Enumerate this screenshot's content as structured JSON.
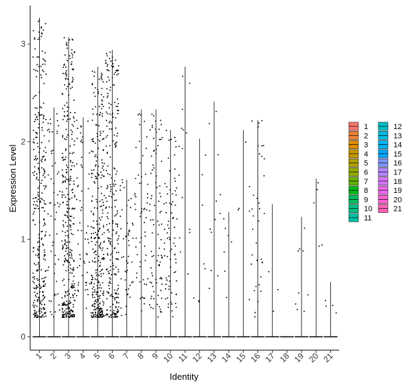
{
  "chart_data": {
    "type": "violin",
    "xlabel": "Identity",
    "ylabel": "Expression Level",
    "categories": [
      "1",
      "2",
      "3",
      "4",
      "5",
      "6",
      "7",
      "8",
      "9",
      "10",
      "11",
      "12",
      "13",
      "14",
      "15",
      "16",
      "17",
      "18",
      "19",
      "20",
      "21"
    ],
    "ylim": [
      -0.15,
      3.35
    ],
    "yticks": [
      0,
      1,
      2,
      3
    ],
    "max_values": [
      3.27,
      2.35,
      3.07,
      2.25,
      2.77,
      2.94,
      1.61,
      2.33,
      2.33,
      2.12,
      2.77,
      2.03,
      2.41,
      1.28,
      2.12,
      2.22,
      1.36,
      0,
      1.23,
      1.62,
      0.56
    ],
    "jitter_density": [
      320,
      60,
      360,
      60,
      320,
      260,
      50,
      60,
      90,
      80,
      15,
      8,
      12,
      7,
      6,
      35,
      3,
      0,
      9,
      5,
      4
    ],
    "grid": false,
    "legend_placement": "right",
    "legend": {
      "items": [
        "1",
        "2",
        "3",
        "4",
        "5",
        "6",
        "7",
        "8",
        "9",
        "10",
        "11",
        "12",
        "13",
        "14",
        "15",
        "16",
        "17",
        "18",
        "19",
        "20",
        "21"
      ],
      "colors": [
        "#F8766D",
        "#EC8239",
        "#DB8E00",
        "#C79800",
        "#AFA100",
        "#93AA00",
        "#64B200",
        "#00B81B",
        "#00BD5C",
        "#00C085",
        "#00C1A7",
        "#00BFC4",
        "#00BADE",
        "#00B2F3",
        "#00A6FF",
        "#7C96FF",
        "#B385FF",
        "#D874FD",
        "#EF67EB",
        "#FD61D3",
        "#FF63B6"
      ]
    }
  }
}
